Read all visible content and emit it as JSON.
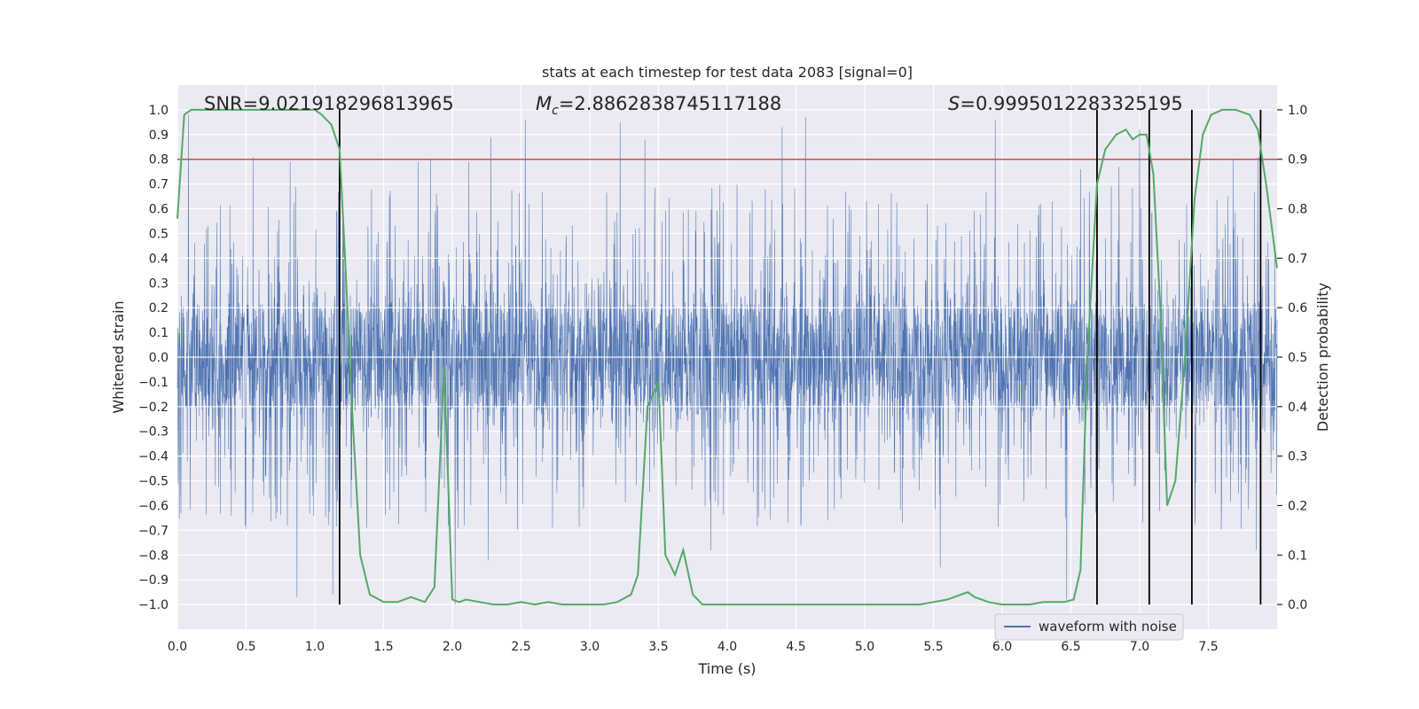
{
  "chart_data": {
    "type": "line",
    "title": "stats at each timestep for test data 2083 [signal=0]",
    "xlabel": "Time (s)",
    "ylabel_left": "Whitened strain",
    "ylabel_right": "Detection probability",
    "xlim": [
      0.0,
      8.0
    ],
    "ylim_left": [
      -1.1,
      1.1
    ],
    "ylim_right": [
      -0.05,
      1.05
    ],
    "grid": true,
    "x_ticks": [
      "0.0",
      "0.5",
      "1.0",
      "1.5",
      "2.0",
      "2.5",
      "3.0",
      "3.5",
      "4.0",
      "4.5",
      "5.0",
      "5.5",
      "6.0",
      "6.5",
      "7.0",
      "7.5"
    ],
    "x_tick_values": [
      0.0,
      0.5,
      1.0,
      1.5,
      2.0,
      2.5,
      3.0,
      3.5,
      4.0,
      4.5,
      5.0,
      5.5,
      6.0,
      6.5,
      7.0,
      7.5
    ],
    "y_left_ticks": [
      "1.0",
      "0.9",
      "0.8",
      "0.7",
      "0.6",
      "0.5",
      "0.4",
      "0.3",
      "0.2",
      "0.1",
      "0.0",
      "−0.1",
      "−0.2",
      "−0.3",
      "−0.4",
      "−0.5",
      "−0.6",
      "−0.7",
      "−0.8",
      "−0.9",
      "−1.0"
    ],
    "y_left_tick_values": [
      1.0,
      0.9,
      0.8,
      0.7,
      0.6,
      0.5,
      0.4,
      0.3,
      0.2,
      0.1,
      0.0,
      -0.1,
      -0.2,
      -0.3,
      -0.4,
      -0.5,
      -0.6,
      -0.7,
      -0.8,
      -0.9,
      -1.0
    ],
    "y_right_ticks": [
      "1.0",
      "0.9",
      "0.8",
      "0.7",
      "0.6",
      "0.5",
      "0.4",
      "0.3",
      "0.2",
      "0.1",
      "0.0"
    ],
    "y_right_tick_values": [
      1.0,
      0.9,
      0.8,
      0.7,
      0.6,
      0.5,
      0.4,
      0.3,
      0.2,
      0.1,
      0.0
    ],
    "annotations": {
      "snr": "SNR=9.021918296813965",
      "mc_symbol": "M",
      "mc_subscript": "c",
      "mc_value": "=2.8862838745117188",
      "s_symbol": "S",
      "s_value": "=0.9995012283325195"
    },
    "legend": {
      "label": "waveform with noise",
      "location": "lower right"
    },
    "threshold": {
      "value": 0.8,
      "axis": "left",
      "color": "#c44e52"
    },
    "vertical_markers": [
      1.18,
      6.69,
      7.07,
      7.38,
      7.88
    ],
    "waveform": {
      "name": "waveform with noise",
      "color": "#4c72b0",
      "samples": 4000,
      "core_amplitude": 0.22,
      "typical_peak": 0.55,
      "notable_peaks": [
        {
          "x": 0.08,
          "y": 0.98
        },
        {
          "x": 0.55,
          "y": 0.81
        },
        {
          "x": 0.82,
          "y": 0.79
        },
        {
          "x": 0.87,
          "y": -0.97
        },
        {
          "x": 1.13,
          "y": -0.96
        },
        {
          "x": 1.18,
          "y": -0.84
        },
        {
          "x": 1.75,
          "y": 0.79
        },
        {
          "x": 1.84,
          "y": 0.8
        },
        {
          "x": 2.02,
          "y": -1.0
        },
        {
          "x": 2.12,
          "y": 0.79
        },
        {
          "x": 2.28,
          "y": 0.89
        },
        {
          "x": 2.26,
          "y": -0.82
        },
        {
          "x": 2.53,
          "y": 0.96
        },
        {
          "x": 3.22,
          "y": 0.95
        },
        {
          "x": 3.4,
          "y": 0.88
        },
        {
          "x": 3.88,
          "y": -0.78
        },
        {
          "x": 4.4,
          "y": 0.93
        },
        {
          "x": 4.57,
          "y": 0.97
        },
        {
          "x": 5.55,
          "y": -0.85
        },
        {
          "x": 5.95,
          "y": 0.96
        },
        {
          "x": 6.47,
          "y": -0.98
        },
        {
          "x": 6.57,
          "y": 0.76
        },
        {
          "x": 6.85,
          "y": 0.77
        },
        {
          "x": 7.0,
          "y": 0.92
        },
        {
          "x": 7.68,
          "y": 0.8
        },
        {
          "x": 7.86,
          "y": 0.81
        },
        {
          "x": 7.85,
          "y": -0.78
        }
      ]
    },
    "probability": {
      "name": "detection probability",
      "color": "#55a868",
      "x": [
        0.0,
        0.05,
        0.1,
        0.15,
        0.25,
        0.35,
        0.5,
        0.65,
        0.8,
        0.95,
        1.0,
        1.05,
        1.12,
        1.18,
        1.22,
        1.27,
        1.33,
        1.4,
        1.5,
        1.6,
        1.65,
        1.7,
        1.8,
        1.87,
        1.94,
        2.0,
        2.05,
        2.1,
        2.2,
        2.3,
        2.4,
        2.5,
        2.6,
        2.7,
        2.8,
        2.9,
        3.0,
        3.1,
        3.2,
        3.3,
        3.35,
        3.42,
        3.5,
        3.55,
        3.62,
        3.68,
        3.75,
        3.82,
        3.9,
        4.0,
        4.2,
        4.4,
        4.6,
        4.8,
        5.0,
        5.2,
        5.4,
        5.5,
        5.6,
        5.75,
        5.8,
        5.9,
        6.0,
        6.1,
        6.2,
        6.3,
        6.45,
        6.52,
        6.57,
        6.62,
        6.69,
        6.75,
        6.83,
        6.9,
        6.95,
        7.0,
        7.05,
        7.1,
        7.15,
        7.2,
        7.26,
        7.33,
        7.4,
        7.46,
        7.52,
        7.6,
        7.7,
        7.8,
        7.86,
        7.92,
        8.0
      ],
      "y": [
        0.78,
        0.99,
        1.0,
        1.0,
        1.0,
        1.0,
        1.0,
        1.0,
        1.0,
        1.0,
        1.0,
        0.99,
        0.97,
        0.92,
        0.7,
        0.4,
        0.1,
        0.02,
        0.005,
        0.005,
        0.01,
        0.015,
        0.005,
        0.035,
        0.48,
        0.01,
        0.005,
        0.01,
        0.005,
        0.0,
        0.0,
        0.005,
        0.0,
        0.005,
        0.0,
        0.0,
        0.0,
        0.0,
        0.005,
        0.02,
        0.06,
        0.4,
        0.45,
        0.1,
        0.06,
        0.11,
        0.02,
        0.0,
        0.0,
        0.0,
        0.0,
        0.0,
        0.0,
        0.0,
        0.0,
        0.0,
        0.0,
        0.005,
        0.01,
        0.025,
        0.015,
        0.005,
        0.0,
        0.0,
        0.0,
        0.005,
        0.005,
        0.01,
        0.07,
        0.5,
        0.85,
        0.92,
        0.95,
        0.96,
        0.94,
        0.95,
        0.95,
        0.87,
        0.6,
        0.2,
        0.25,
        0.5,
        0.82,
        0.95,
        0.99,
        1.0,
        1.0,
        0.99,
        0.96,
        0.85,
        0.68
      ]
    }
  }
}
